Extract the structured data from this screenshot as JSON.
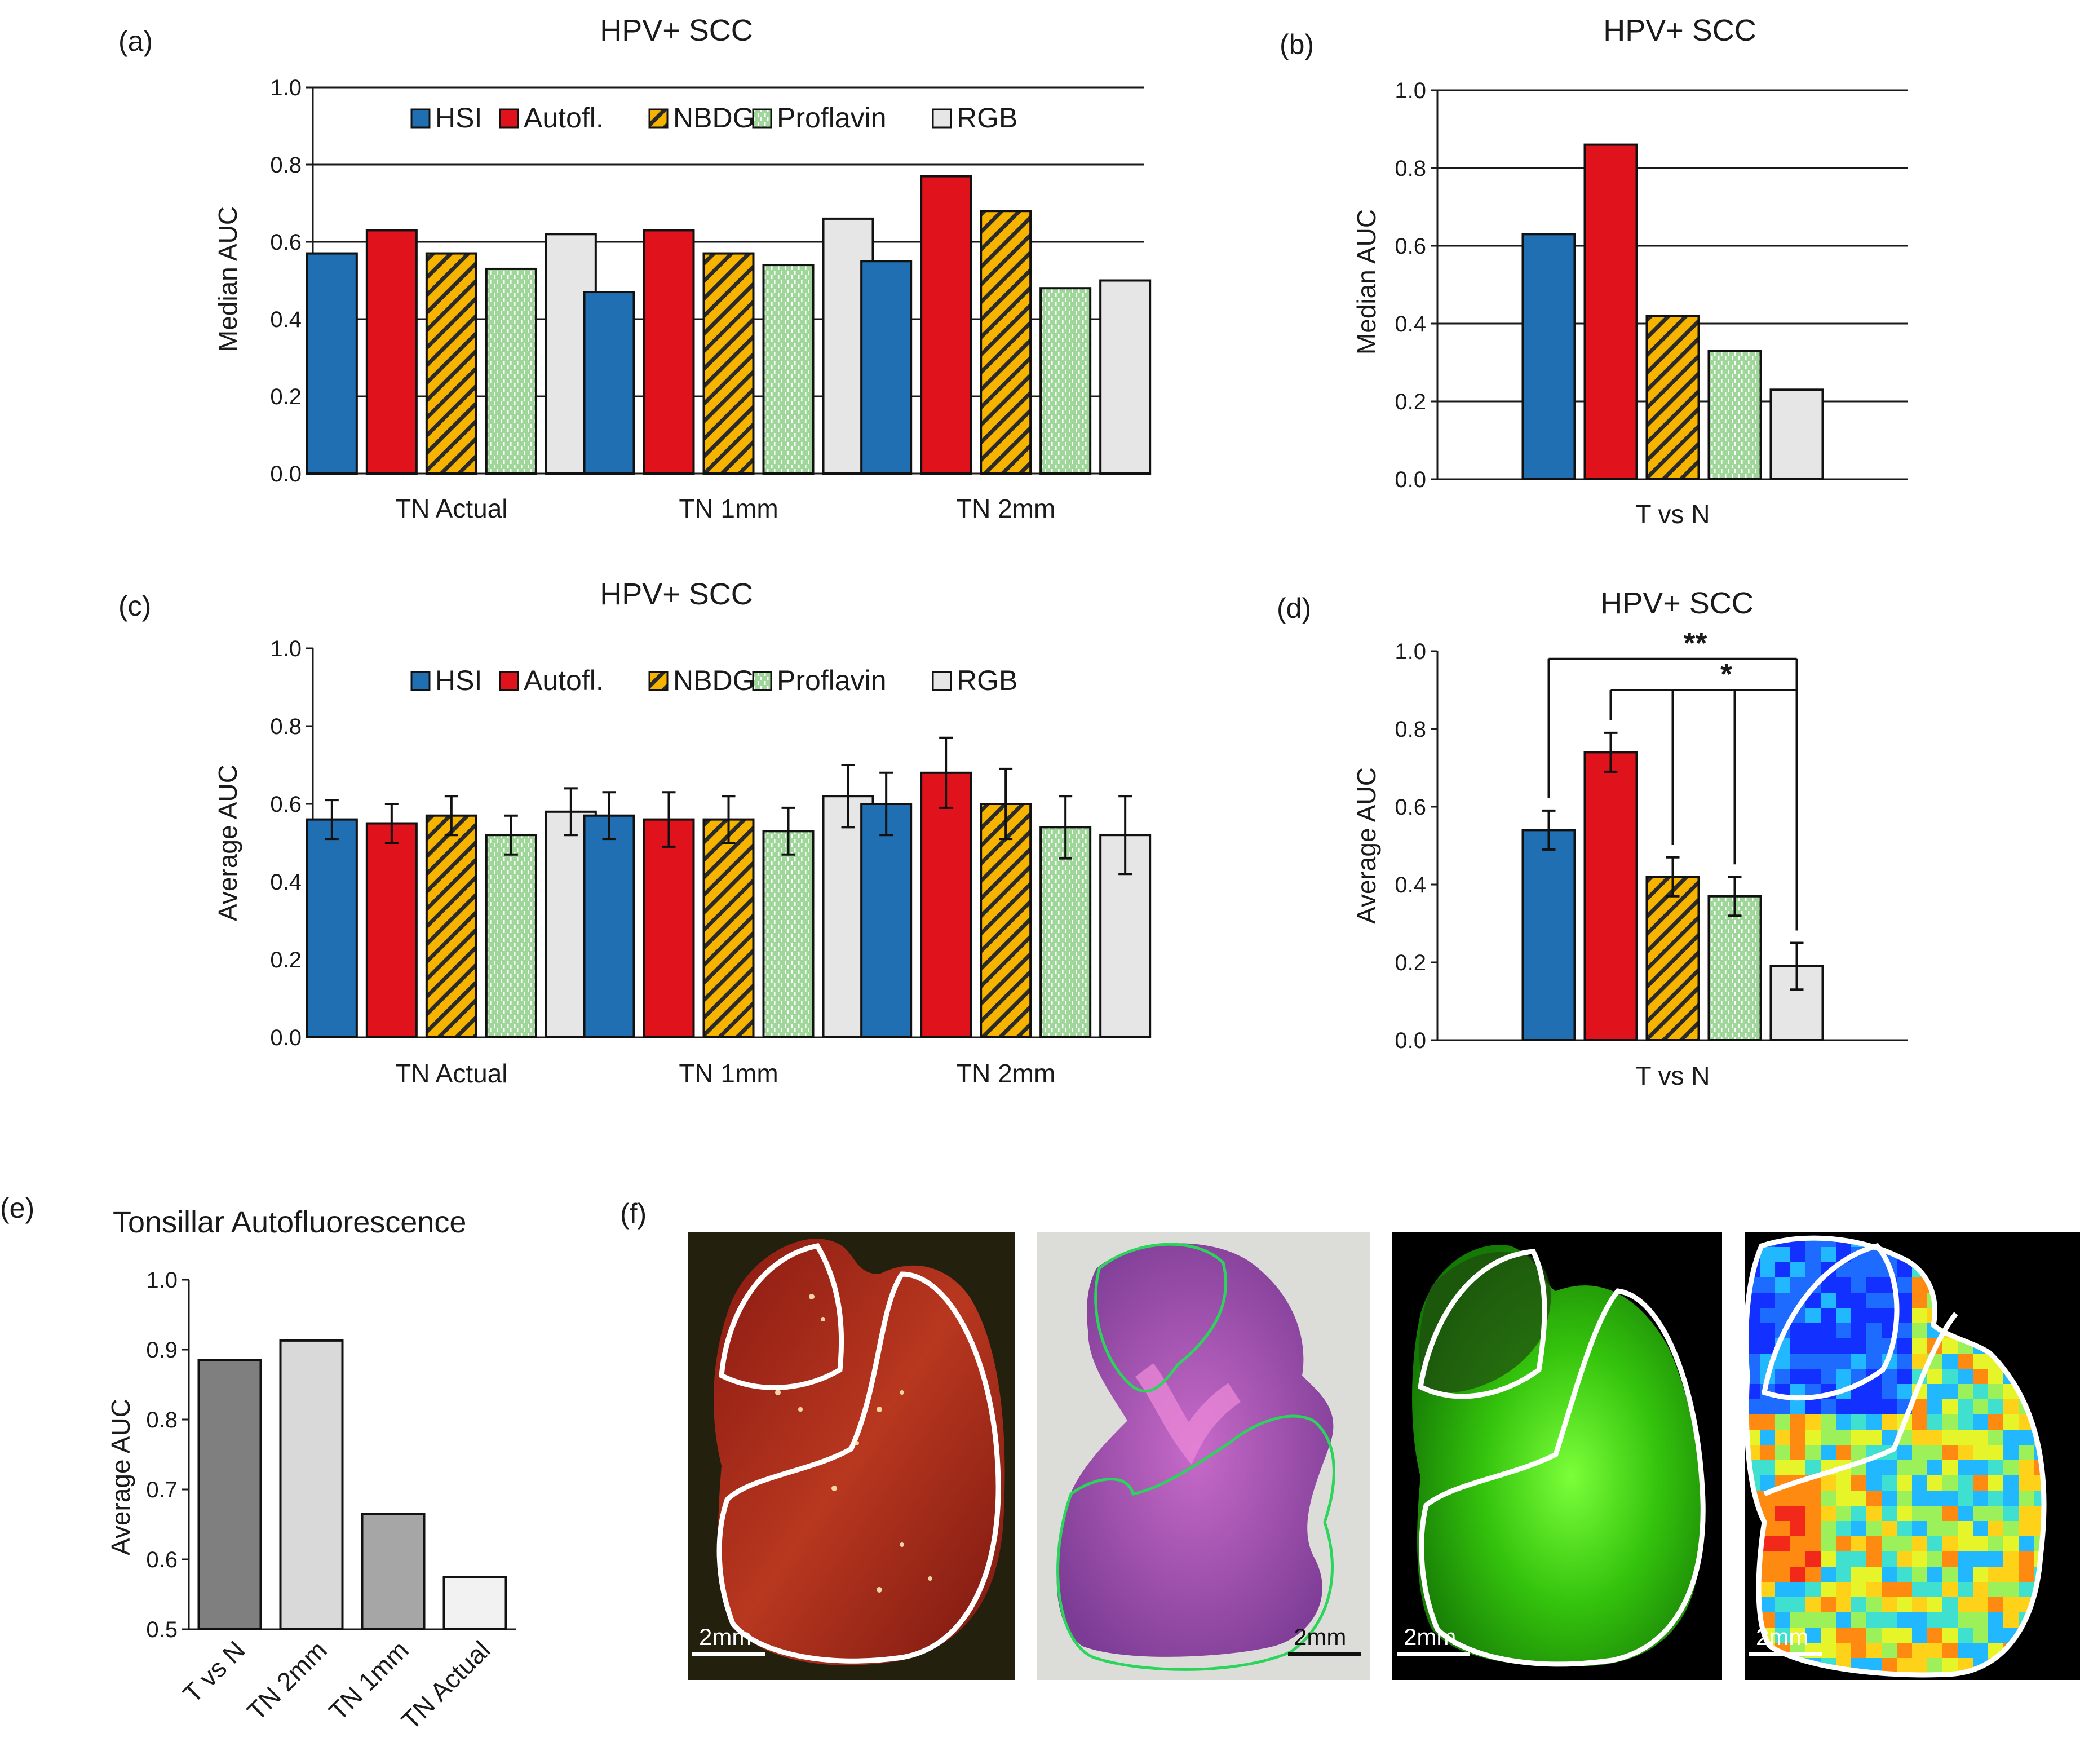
{
  "chart_data": [
    {
      "id": "a",
      "panel": "(a)",
      "type": "bar",
      "title": "HPV+ SCC",
      "ylabel": "Median AUC",
      "ylim": [
        0,
        1
      ],
      "yticks": [
        "0.0",
        "0.2",
        "0.4",
        "0.6",
        "0.8",
        "1.0"
      ],
      "categories": [
        "TN Actual",
        "TN 1mm",
        "TN 2mm"
      ],
      "series": [
        {
          "name": "HSI",
          "values": [
            0.57,
            0.47,
            0.55
          ]
        },
        {
          "name": "Autofl.",
          "values": [
            0.63,
            0.63,
            0.77
          ]
        },
        {
          "name": "NBDG",
          "values": [
            0.57,
            0.57,
            0.68
          ]
        },
        {
          "name": "Proflavin",
          "values": [
            0.53,
            0.54,
            0.48
          ]
        },
        {
          "name": "RGB",
          "values": [
            0.62,
            0.66,
            0.5
          ]
        }
      ],
      "legend": "top"
    },
    {
      "id": "b",
      "panel": "(b)",
      "type": "bar",
      "title": "HPV+ SCC",
      "ylabel": "Median AUC",
      "ylim": [
        0,
        1
      ],
      "yticks": [
        "0.0",
        "0.2",
        "0.4",
        "0.6",
        "0.8",
        "1.0"
      ],
      "categories": [
        "T vs N"
      ],
      "series": [
        {
          "name": "HSI",
          "values": [
            0.63
          ]
        },
        {
          "name": "Autofl.",
          "values": [
            0.86
          ]
        },
        {
          "name": "NBDG",
          "values": [
            0.42
          ]
        },
        {
          "name": "Proflavin",
          "values": [
            0.33
          ]
        },
        {
          "name": "RGB",
          "values": [
            0.23
          ]
        }
      ]
    },
    {
      "id": "c",
      "panel": "(c)",
      "type": "bar",
      "title": "HPV+ SCC",
      "ylabel": "Average AUC",
      "ylim": [
        0,
        1
      ],
      "yticks": [
        "0.0",
        "0.2",
        "0.4",
        "0.6",
        "0.8",
        "1.0"
      ],
      "categories": [
        "TN Actual",
        "TN 1mm",
        "TN 2mm"
      ],
      "series": [
        {
          "name": "HSI",
          "values": [
            0.56,
            0.57,
            0.6
          ],
          "errors": [
            0.05,
            0.06,
            0.08
          ]
        },
        {
          "name": "Autofl.",
          "values": [
            0.55,
            0.56,
            0.68
          ],
          "errors": [
            0.05,
            0.07,
            0.09
          ]
        },
        {
          "name": "NBDG",
          "values": [
            0.57,
            0.56,
            0.6
          ],
          "errors": [
            0.05,
            0.06,
            0.09
          ]
        },
        {
          "name": "Proflavin",
          "values": [
            0.52,
            0.53,
            0.54
          ],
          "errors": [
            0.05,
            0.06,
            0.08
          ]
        },
        {
          "name": "RGB",
          "values": [
            0.58,
            0.62,
            0.52
          ],
          "errors": [
            0.06,
            0.08,
            0.1
          ]
        }
      ],
      "legend": "top"
    },
    {
      "id": "d",
      "panel": "(d)",
      "type": "bar",
      "title": "HPV+ SCC",
      "ylabel": "Average AUC",
      "ylim": [
        0,
        1
      ],
      "yticks": [
        "0.0",
        "0.2",
        "0.4",
        "0.6",
        "0.8",
        "1.0"
      ],
      "categories": [
        "T vs N"
      ],
      "series": [
        {
          "name": "HSI",
          "values": [
            0.54
          ],
          "errors": [
            0.05
          ]
        },
        {
          "name": "Autofl.",
          "values": [
            0.74
          ],
          "errors": [
            0.05
          ]
        },
        {
          "name": "NBDG",
          "values": [
            0.42
          ],
          "errors": [
            0.05
          ]
        },
        {
          "name": "Proflavin",
          "values": [
            0.37
          ],
          "errors": [
            0.05
          ]
        },
        {
          "name": "RGB",
          "values": [
            0.19
          ],
          "errors": [
            0.06
          ]
        }
      ],
      "significance": [
        {
          "label": "**",
          "from": "HSI",
          "to": "RGB",
          "level": 0.98
        },
        {
          "label": "*",
          "from": "Autofl.",
          "to": "RGB",
          "level": 0.9
        }
      ]
    },
    {
      "id": "e",
      "panel": "(e)",
      "type": "bar",
      "title": "Tonsillar Autofluorescence",
      "ylabel": "Average AUC",
      "ylim": [
        0.5,
        1.0
      ],
      "yticks": [
        "0.5",
        "0.6",
        "0.7",
        "0.8",
        "0.9",
        "1.0"
      ],
      "categories": [
        "T vs N",
        "TN 2mm",
        "TN 1mm",
        "TN Actual"
      ],
      "values": [
        0.885,
        0.913,
        0.665,
        0.575
      ],
      "colors": [
        "#7f7f7f",
        "#d9d9d9",
        "#a6a6a6",
        "#f2f2f2"
      ]
    }
  ],
  "colors": {
    "HSI": "#1f6fb2",
    "Autofl.": "#e0121b",
    "NBDG": "#f6b400",
    "Proflavin": "#9fd79a",
    "RGB": "#e6e6e6"
  },
  "images": {
    "panel": "(f)",
    "scale_bars": [
      "2mm",
      "2mm",
      "2mm",
      "2mm"
    ],
    "items": [
      "gross-photo",
      "histology",
      "autofluorescence",
      "prediction-heatmap"
    ]
  }
}
